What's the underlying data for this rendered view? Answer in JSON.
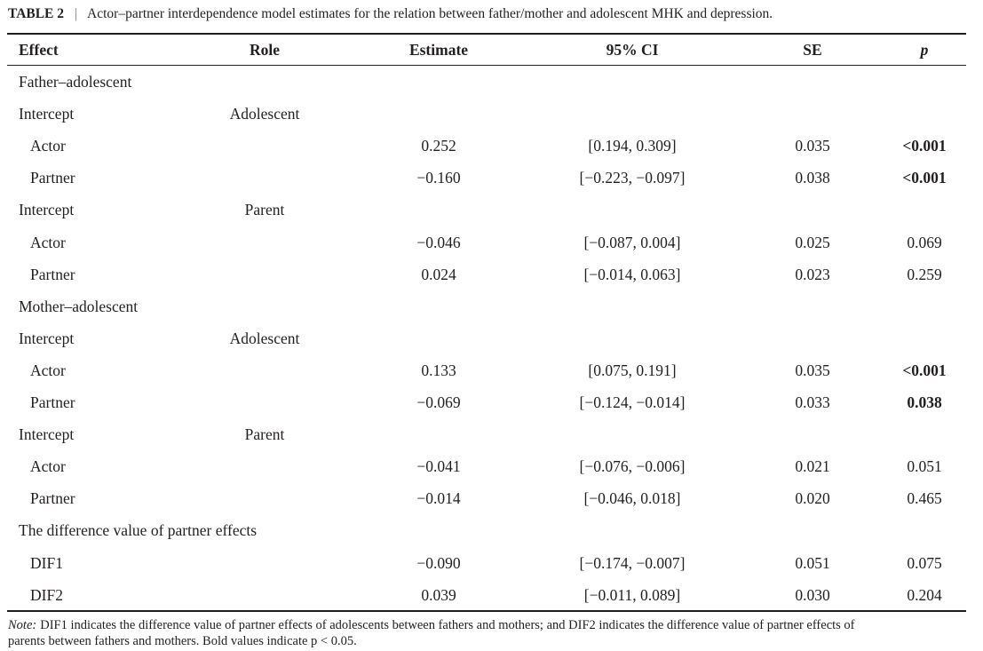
{
  "title": {
    "label": "TABLE 2",
    "separator": "|",
    "text": "Actor–partner interdependence model estimates for the relation between father/mother and adolescent MHK and depression."
  },
  "table": {
    "columns": {
      "effect": "Effect",
      "role": "Role",
      "estimate": "Estimate",
      "ci": "95% CI",
      "se": "SE",
      "p": "p"
    },
    "rows": [
      {
        "group": "Father–adolescent"
      },
      {
        "effect": "Intercept",
        "role": "Adolescent"
      },
      {
        "effect": "Actor",
        "estimate": "0.252",
        "ci": "[0.194, 0.309]",
        "se": "0.035",
        "p": "<0.001",
        "p_bold": true
      },
      {
        "effect": "Partner",
        "estimate": "−0.160",
        "ci": "[−0.223, −0.097]",
        "se": "0.038",
        "p": "<0.001",
        "p_bold": true
      },
      {
        "effect": "Intercept",
        "role": "Parent"
      },
      {
        "effect": "Actor",
        "estimate": "−0.046",
        "ci": "[−0.087, 0.004]",
        "se": "0.025",
        "p": "0.069",
        "p_bold": false
      },
      {
        "effect": "Partner",
        "estimate": "0.024",
        "ci": "[−0.014, 0.063]",
        "se": "0.023",
        "p": "0.259",
        "p_bold": false
      },
      {
        "group": "Mother–adolescent"
      },
      {
        "effect": "Intercept",
        "role": "Adolescent"
      },
      {
        "effect": "Actor",
        "estimate": "0.133",
        "ci": "[0.075, 0.191]",
        "se": "0.035",
        "p": "<0.001",
        "p_bold": true
      },
      {
        "effect": "Partner",
        "estimate": "−0.069",
        "ci": "[−0.124, −0.014]",
        "se": "0.033",
        "p": "0.038",
        "p_bold": true
      },
      {
        "effect": "Intercept",
        "role": "Parent"
      },
      {
        "effect": "Actor",
        "estimate": "−0.041",
        "ci": "[−0.076, −0.006]",
        "se": "0.021",
        "p": "0.051",
        "p_bold": false
      },
      {
        "effect": "Partner",
        "estimate": "−0.014",
        "ci": "[−0.046, 0.018]",
        "se": "0.020",
        "p": "0.465",
        "p_bold": false
      },
      {
        "group": "The difference value of partner effects"
      },
      {
        "effect": "DIF1",
        "estimate": "−0.090",
        "ci": "[−0.174, −0.007]",
        "se": "0.051",
        "p": "0.075",
        "p_bold": false
      },
      {
        "effect": "DIF2",
        "estimate": "0.039",
        "ci": "[−0.011, 0.089]",
        "se": "0.030",
        "p": "0.204",
        "p_bold": false
      }
    ]
  },
  "note": {
    "label": "Note:",
    "lines": [
      "DIF1 indicates the difference value of partner effects of adolescents between fathers and mothers; and DIF2 indicates the difference value of partner effects of",
      "parents between fathers and mothers. Bold values indicate p < 0.05."
    ]
  }
}
